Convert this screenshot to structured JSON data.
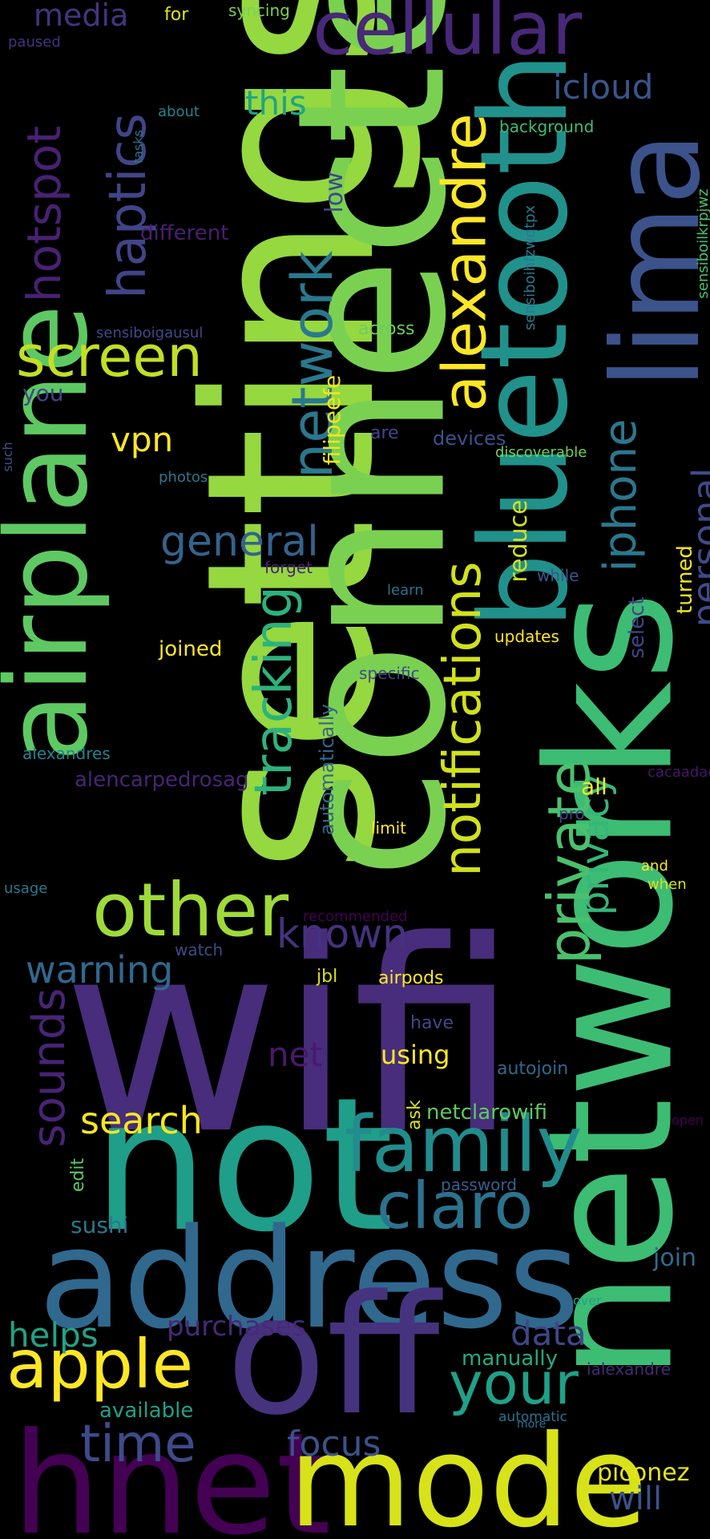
{
  "words": [
    {
      "text": "wifi",
      "color": "#472d7b"
    },
    {
      "text": "settings",
      "color": "#95d840"
    },
    {
      "text": "connected",
      "color": "#7ad151"
    },
    {
      "text": "bluetooth",
      "color": "#21918c"
    },
    {
      "text": "networks",
      "color": "#3dbc74"
    },
    {
      "text": "lima",
      "color": "#3b528b"
    },
    {
      "text": "airplane",
      "color": "#5ec962"
    },
    {
      "text": "not",
      "color": "#1f9e89"
    },
    {
      "text": "address",
      "color": "#31688e"
    },
    {
      "text": "off",
      "color": "#46337e"
    },
    {
      "text": "hnet",
      "color": "#440154"
    },
    {
      "text": "mode",
      "color": "#d8e219"
    },
    {
      "text": "cellular",
      "color": "#482878"
    },
    {
      "text": "alexandre",
      "color": "#fde725"
    },
    {
      "text": "other",
      "color": "#a0da39"
    },
    {
      "text": "network",
      "color": "#2a788e"
    },
    {
      "text": "family",
      "color": "#228c8d"
    },
    {
      "text": "apple",
      "color": "#fde725"
    },
    {
      "text": "your",
      "color": "#1fa188"
    },
    {
      "text": "notifications",
      "color": "#d0e11c"
    },
    {
      "text": "privacy",
      "color": "#35b779"
    },
    {
      "text": "screen",
      "color": "#c2df23"
    },
    {
      "text": "tracking",
      "color": "#2db27d"
    },
    {
      "text": "claro",
      "color": "#2c728e"
    },
    {
      "text": "haptics",
      "color": "#414487"
    },
    {
      "text": "hotspot",
      "color": "#482173"
    },
    {
      "text": "private",
      "color": "#4ac16d"
    },
    {
      "text": "time",
      "color": "#3e4a89"
    },
    {
      "text": "iphone",
      "color": "#2a788e"
    },
    {
      "text": "sounds",
      "color": "#482475"
    },
    {
      "text": "general",
      "color": "#33638d"
    },
    {
      "text": "personal",
      "color": "#3e4a89"
    },
    {
      "text": "known",
      "color": "#46327e"
    },
    {
      "text": "warning",
      "color": "#31688e"
    },
    {
      "text": "search",
      "color": "#f6e620"
    },
    {
      "text": "data",
      "color": "#3f4788"
    },
    {
      "text": "focus",
      "color": "#3b528b"
    },
    {
      "text": "helps",
      "color": "#20a386"
    },
    {
      "text": "icloud",
      "color": "#39568c"
    },
    {
      "text": "media",
      "color": "#46337e"
    },
    {
      "text": "this",
      "color": "#20a386"
    },
    {
      "text": "purchases",
      "color": "#482878"
    },
    {
      "text": "will",
      "color": "#3b528b"
    },
    {
      "text": "piconez",
      "color": "#e5e419"
    },
    {
      "text": "vpn",
      "color": "#fde725"
    },
    {
      "text": "net",
      "color": "#481a6c"
    },
    {
      "text": "using",
      "color": "#fde725"
    },
    {
      "text": "filipeefe",
      "color": "#f1e51d"
    },
    {
      "text": "reduce",
      "color": "#d2e21b"
    },
    {
      "text": "alencarpedrosag",
      "color": "#482475"
    },
    {
      "text": "netclarowifi",
      "color": "#5ec962"
    },
    {
      "text": "sushi",
      "color": "#2a788e"
    },
    {
      "text": "manually",
      "color": "#25ab82"
    },
    {
      "text": "join",
      "color": "#2f6c8e"
    },
    {
      "text": "available",
      "color": "#1fa088"
    },
    {
      "text": "joined",
      "color": "#fde725"
    },
    {
      "text": "automatically",
      "color": "#31688e"
    },
    {
      "text": "all",
      "color": "#fde725"
    },
    {
      "text": "select",
      "color": "#414487"
    },
    {
      "text": "turned",
      "color": "#f1e51d"
    },
    {
      "text": "different",
      "color": "#481f70"
    },
    {
      "text": "low",
      "color": "#3f4788"
    },
    {
      "text": "across",
      "color": "#6ccd5a"
    },
    {
      "text": "you",
      "color": "#3f4788"
    },
    {
      "text": "devices",
      "color": "#3b528b"
    },
    {
      "text": "are",
      "color": "#3f4788"
    },
    {
      "text": "updates",
      "color": "#fde725"
    },
    {
      "text": "specific",
      "color": "#3e4a89"
    },
    {
      "text": "learn",
      "color": "#2c728e"
    },
    {
      "text": "forget",
      "color": "#482173"
    },
    {
      "text": "while",
      "color": "#39568c"
    },
    {
      "text": "limit",
      "color": "#fde725"
    },
    {
      "text": "pro",
      "color": "#414487"
    },
    {
      "text": "airpods",
      "color": "#fde725"
    },
    {
      "text": "jbl",
      "color": "#d8e219"
    },
    {
      "text": "have",
      "color": "#3e4a89"
    },
    {
      "text": "autojoin",
      "color": "#31688e"
    },
    {
      "text": "ask",
      "color": "#d8e219"
    },
    {
      "text": "edit",
      "color": "#5ec962"
    },
    {
      "text": "password",
      "color": "#355f8d"
    },
    {
      "text": "watch",
      "color": "#3e4a89"
    },
    {
      "text": "recommended",
      "color": "#440154"
    },
    {
      "text": "and",
      "color": "#fde725"
    },
    {
      "text": "when",
      "color": "#d8e219"
    },
    {
      "text": "usage",
      "color": "#2a788e"
    },
    {
      "text": "alexandres",
      "color": "#26828e"
    },
    {
      "text": "cacaadac",
      "color": "#481668"
    },
    {
      "text": "open",
      "color": "#440154"
    },
    {
      "text": "over",
      "color": "#1fa088"
    },
    {
      "text": "ialexandre",
      "color": "#482878"
    },
    {
      "text": "automatic",
      "color": "#2c728e"
    },
    {
      "text": "more",
      "color": "#2c728e"
    },
    {
      "text": "paused",
      "color": "#46327e"
    },
    {
      "text": "for",
      "color": "#dde318"
    },
    {
      "text": "syncing",
      "color": "#7ad151"
    },
    {
      "text": "about",
      "color": "#26828e"
    },
    {
      "text": "tasks",
      "color": "#2c728e"
    },
    {
      "text": "background",
      "color": "#3dbc74"
    },
    {
      "text": "sensiboihfzwqtpx",
      "color": "#2a788e"
    },
    {
      "text": "sensiboilkrpjwz",
      "color": "#4ac16d"
    },
    {
      "text": "sensiboigausul",
      "color": "#3e4a89"
    },
    {
      "text": "discoverable",
      "color": "#73d056"
    },
    {
      "text": "photos",
      "color": "#2a788e"
    },
    {
      "text": "such",
      "color": "#3b528b"
    }
  ]
}
